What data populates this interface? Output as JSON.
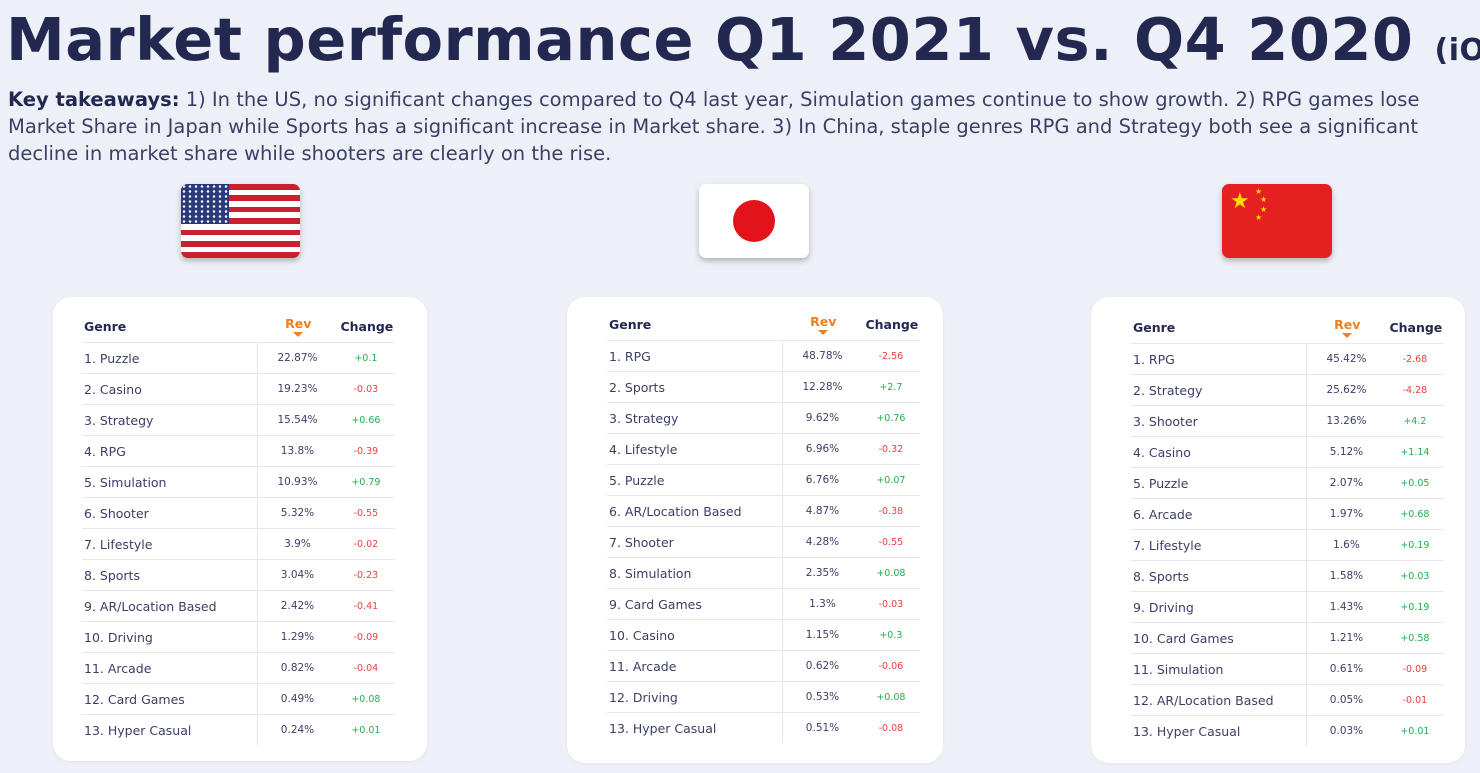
{
  "header": {
    "title": "Market performance Q1 2021 vs. Q4 2020",
    "title_suffix": "(iOS)"
  },
  "takeaways": {
    "label": "Key takeaways:",
    "text": " 1) In the US, no significant changes compared to Q4 last year, Simulation games continue to show growth. 2) RPG games lose Market Share in Japan while Sports has a significant increase in Market share. 3) In China, staple genres RPG and Strategy both see a significant decline in market share while shooters are clearly on the rise."
  },
  "colors": {
    "title": "#232850",
    "accent_rev": "#ee7e1e",
    "positive": "#21b04b",
    "negative": "#ec3e3e",
    "background": "#eef0f7"
  },
  "flags": {
    "us": "us-flag-icon",
    "jp": "japan-flag-icon",
    "cn": "china-flag-icon"
  },
  "tables": [
    {
      "headers": {
        "genre": "Genre",
        "rev": "Rev",
        "change": "Change"
      },
      "rows": [
        {
          "genre": "1. Puzzle",
          "rev": "22.87%",
          "change": "+0.1"
        },
        {
          "genre": "2. Casino",
          "rev": "19.23%",
          "change": "-0.03"
        },
        {
          "genre": "3. Strategy",
          "rev": "15.54%",
          "change": "+0.66"
        },
        {
          "genre": "4. RPG",
          "rev": "13.8%",
          "change": "-0.39"
        },
        {
          "genre": "5. Simulation",
          "rev": "10.93%",
          "change": "+0.79"
        },
        {
          "genre": "6. Shooter",
          "rev": "5.32%",
          "change": "-0.55"
        },
        {
          "genre": "7. Lifestyle",
          "rev": "3.9%",
          "change": "-0.02"
        },
        {
          "genre": "8. Sports",
          "rev": "3.04%",
          "change": "-0.23"
        },
        {
          "genre": "9. AR/Location Based",
          "rev": "2.42%",
          "change": "-0.41"
        },
        {
          "genre": "10. Driving",
          "rev": "1.29%",
          "change": "-0.09"
        },
        {
          "genre": "11. Arcade",
          "rev": "0.82%",
          "change": "-0.04"
        },
        {
          "genre": "12. Card Games",
          "rev": "0.49%",
          "change": "+0.08"
        },
        {
          "genre": "13. Hyper Casual",
          "rev": "0.24%",
          "change": "+0.01"
        }
      ]
    },
    {
      "headers": {
        "genre": "Genre",
        "rev": "Rev",
        "change": "Change"
      },
      "rows": [
        {
          "genre": "1. RPG",
          "rev": "48.78%",
          "change": "-2.56"
        },
        {
          "genre": "2. Sports",
          "rev": "12.28%",
          "change": "+2.7"
        },
        {
          "genre": "3. Strategy",
          "rev": "9.62%",
          "change": "+0.76"
        },
        {
          "genre": "4. Lifestyle",
          "rev": "6.96%",
          "change": "-0.32"
        },
        {
          "genre": "5. Puzzle",
          "rev": "6.76%",
          "change": "+0.07"
        },
        {
          "genre": "6. AR/Location Based",
          "rev": "4.87%",
          "change": "-0.38"
        },
        {
          "genre": "7. Shooter",
          "rev": "4.28%",
          "change": "-0.55"
        },
        {
          "genre": "8. Simulation",
          "rev": "2.35%",
          "change": "+0.08"
        },
        {
          "genre": "9. Card Games",
          "rev": "1.3%",
          "change": "-0.03"
        },
        {
          "genre": "10. Casino",
          "rev": "1.15%",
          "change": "+0.3"
        },
        {
          "genre": "11. Arcade",
          "rev": "0.62%",
          "change": "-0.06"
        },
        {
          "genre": "12. Driving",
          "rev": "0.53%",
          "change": "+0.08"
        },
        {
          "genre": "13. Hyper Casual",
          "rev": "0.51%",
          "change": "-0.08"
        }
      ]
    },
    {
      "headers": {
        "genre": "Genre",
        "rev": "Rev",
        "change": "Change"
      },
      "rows": [
        {
          "genre": "1. RPG",
          "rev": "45.42%",
          "change": "-2.68"
        },
        {
          "genre": "2. Strategy",
          "rev": "25.62%",
          "change": "-4.28"
        },
        {
          "genre": "3. Shooter",
          "rev": "13.26%",
          "change": "+4.2"
        },
        {
          "genre": "4. Casino",
          "rev": "5.12%",
          "change": "+1.14"
        },
        {
          "genre": "5. Puzzle",
          "rev": "2.07%",
          "change": "+0.05"
        },
        {
          "genre": "6. Arcade",
          "rev": "1.97%",
          "change": "+0.68"
        },
        {
          "genre": "7. Lifestyle",
          "rev": "1.6%",
          "change": "+0.19"
        },
        {
          "genre": "8. Sports",
          "rev": "1.58%",
          "change": "+0.03"
        },
        {
          "genre": "9. Driving",
          "rev": "1.43%",
          "change": "+0.19"
        },
        {
          "genre": "10. Card Games",
          "rev": "1.21%",
          "change": "+0.58"
        },
        {
          "genre": "11. Simulation",
          "rev": "0.61%",
          "change": "-0.09"
        },
        {
          "genre": "12. AR/Location Based",
          "rev": "0.05%",
          "change": "-0.01"
        },
        {
          "genre": "13. Hyper Casual",
          "rev": "0.03%",
          "change": "+0.01"
        }
      ]
    }
  ]
}
